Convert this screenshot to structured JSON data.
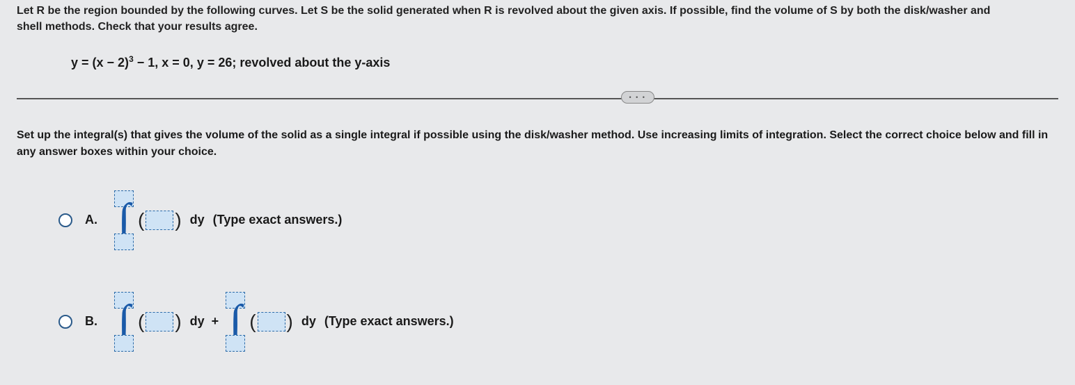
{
  "intro_line1": "Let R be the region bounded by the following curves. Let S be the solid generated when R is revolved about the given axis. If possible, find the volume of S by both the disk/washer and",
  "intro_line2": "shell methods. Check that your results agree.",
  "equation": "y = (x − 2)³ − 1, x = 0, y = 26; revolved about the y-axis",
  "divider_dots": "• • •",
  "instruction": "Set up the integral(s) that gives the volume of the solid as a single integral if possible using the disk/washer method. Use increasing limits of integration. Select the correct choice below and fill in any answer boxes within your choice.",
  "choices": {
    "a": {
      "label": "A.",
      "diff": "dy",
      "hint": "(Type exact answers.)"
    },
    "b": {
      "label": "B.",
      "diff1": "dy",
      "plus": "+",
      "diff2": "dy",
      "hint": "(Type exact answers.)"
    }
  },
  "colors": {
    "bg": "#e8e9eb",
    "text": "#1a1a1a",
    "radio_border": "#2a5a8a",
    "int_symbol": "#1a5aa8",
    "input_fill": "#cfe3f5",
    "input_border": "#2a6aa8",
    "divider": "#555"
  },
  "typography": {
    "body_fontsize": 16,
    "body_weight": 600,
    "equation_fontsize": 18,
    "equation_weight": 700,
    "choice_label_fontsize": 18
  }
}
